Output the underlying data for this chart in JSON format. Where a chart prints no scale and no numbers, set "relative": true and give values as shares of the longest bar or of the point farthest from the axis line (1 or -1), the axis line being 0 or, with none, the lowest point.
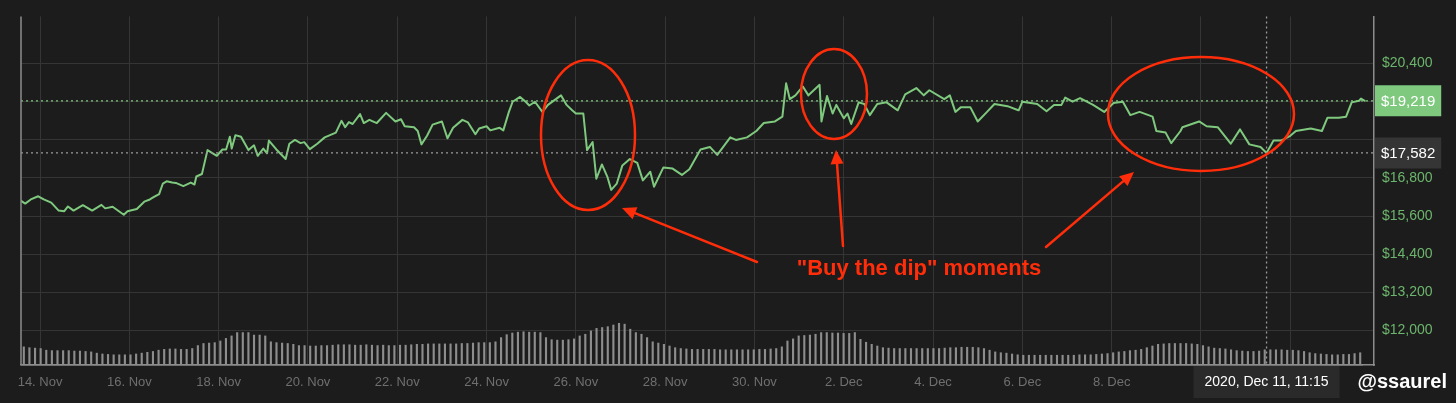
{
  "chart_data": [
    {
      "type": "line",
      "x": [
        "2020-11-13T14:00",
        "2020-11-13T16:00",
        "2020-11-13T19:00",
        "2020-11-13T23:00",
        "2020-11-14T02:00",
        "2020-11-14T06:00",
        "2020-11-14T10:00",
        "2020-11-14T13:00",
        "2020-11-14T15:00",
        "2020-11-14T18:00",
        "2020-11-14T23:00",
        "2020-11-15T04:00",
        "2020-11-15T09:00",
        "2020-11-15T11:00",
        "2020-11-15T15:00",
        "2020-11-15T21:00",
        "2020-11-15T23:00",
        "2020-11-16T04:00",
        "2020-11-16T08:00",
        "2020-11-16T11:00",
        "2020-11-16T13:00",
        "2020-11-16T16:00",
        "2020-11-16T18:00",
        "2020-11-16T20:00",
        "2020-11-16T23:00",
        "2020-11-17T01:00",
        "2020-11-17T05:00",
        "2020-11-17T09:00",
        "2020-11-17T11:00",
        "2020-11-17T12:00",
        "2020-11-17T15:00",
        "2020-11-17T18:00",
        "2020-11-17T23:00",
        "2020-11-18T02:00",
        "2020-11-18T04:00",
        "2020-11-18T06:00",
        "2020-11-18T07:00",
        "2020-11-18T09:00",
        "2020-11-18T12:00",
        "2020-11-18T16:00",
        "2020-11-18T19:00",
        "2020-11-18T21:00",
        "2020-11-19T00:00",
        "2020-11-19T02:00",
        "2020-11-19T03:00",
        "2020-11-19T07:00",
        "2020-11-19T12:00",
        "2020-11-19T14:00",
        "2020-11-19T17:00",
        "2020-11-19T20:00",
        "2020-11-19T22:00",
        "2020-11-20T01:00",
        "2020-11-20T05:00",
        "2020-11-20T09:00",
        "2020-11-20T15:00",
        "2020-11-20T18:00",
        "2020-11-20T20:00",
        "2020-11-20T22:00",
        "2020-11-21T00:00",
        "2020-11-21T04:00",
        "2020-11-21T06:00",
        "2020-11-21T09:00",
        "2020-11-21T13:00",
        "2020-11-21T18:00",
        "2020-11-21T23:00",
        "2020-11-22T02:00",
        "2020-11-22T04:00",
        "2020-11-22T09:00",
        "2020-11-22T11:00",
        "2020-11-22T13:00",
        "2020-11-22T16:00",
        "2020-11-22T19:00",
        "2020-11-23T00:00",
        "2020-11-23T03:00",
        "2020-11-23T06:00",
        "2020-11-23T11:00",
        "2020-11-23T14:00",
        "2020-11-23T18:00",
        "2020-11-23T20:00",
        "2020-11-24T00:00",
        "2020-11-24T02:00",
        "2020-11-24T07:00",
        "2020-11-24T09:00",
        "2020-11-24T12:00",
        "2020-11-24T14:00",
        "2020-11-24T18:00",
        "2020-11-24T21:00",
        "2020-11-24T23:00",
        "2020-11-25T02:00",
        "2020-11-25T06:00",
        "2020-11-25T09:00",
        "2020-11-25T16:00",
        "2020-11-25T19:00",
        "2020-11-25T22:00",
        "2020-11-26T00:00",
        "2020-11-26T04:00",
        "2020-11-26T06:00",
        "2020-11-26T09:00",
        "2020-11-26T11:00",
        "2020-11-26T14:00",
        "2020-11-26T17:00",
        "2020-11-26T19:00",
        "2020-11-26T22:00",
        "2020-11-27T01:00",
        "2020-11-27T05:00",
        "2020-11-27T09:00",
        "2020-11-27T12:00",
        "2020-11-27T16:00",
        "2020-11-27T18:00",
        "2020-11-27T23:00",
        "2020-11-28T04:00",
        "2020-11-28T09:00",
        "2020-11-28T13:00",
        "2020-11-28T19:00",
        "2020-11-29T00:00",
        "2020-11-29T04:00",
        "2020-11-29T11:00",
        "2020-11-29T14:00",
        "2020-11-29T20:00",
        "2020-11-30T01:00",
        "2020-11-30T05:00",
        "2020-11-30T11:00",
        "2020-11-30T15:00",
        "2020-11-30T17:00",
        "2020-11-30T19:00",
        "2020-11-30T22:00",
        "2020-12-01T02:00",
        "2020-12-01T05:00",
        "2020-12-01T11:00",
        "2020-12-01T12:00",
        "2020-12-01T15:00",
        "2020-12-01T18:00",
        "2020-12-01T20:00",
        "2020-12-02T00:00",
        "2020-12-02T02:00",
        "2020-12-02T04:00",
        "2020-12-02T08:00",
        "2020-12-02T11:00",
        "2020-12-02T14:00",
        "2020-12-02T18:00",
        "2020-12-02T23:00",
        "2020-12-03T05:00",
        "2020-12-03T09:00",
        "2020-12-03T15:00",
        "2020-12-03T19:00",
        "2020-12-03T22:00",
        "2020-12-04T06:00",
        "2020-12-04T09:00",
        "2020-12-04T12:00",
        "2020-12-04T15:00",
        "2020-12-04T20:00",
        "2020-12-05T00:00",
        "2020-12-05T05:00",
        "2020-12-05T09:00",
        "2020-12-05T16:00",
        "2020-12-05T22:00",
        "2020-12-06T00:00",
        "2020-12-06T08:00",
        "2020-12-06T13:00",
        "2020-12-06T17:00",
        "2020-12-06T21:00",
        "2020-12-06T23:00",
        "2020-12-07T03:00",
        "2020-12-07T07:00",
        "2020-12-07T14:00",
        "2020-12-07T20:00",
        "2020-12-08T01:00",
        "2020-12-08T06:00",
        "2020-12-08T10:00",
        "2020-12-08T15:00",
        "2020-12-08T22:00",
        "2020-12-09T00:00",
        "2020-12-09T05:00",
        "2020-12-09T08:00",
        "2020-12-09T13:00",
        "2020-12-09T14:00",
        "2020-12-09T23:00",
        "2020-12-10T03:00",
        "2020-12-10T09:00",
        "2020-12-10T16:00",
        "2020-12-10T21:00",
        "2020-12-11T02:00",
        "2020-12-11T08:00",
        "2020-12-11T11:15",
        "2020-12-11T15:00",
        "2020-12-11T19:00",
        "2020-12-12T00:00",
        "2020-12-12T03:00",
        "2020-12-12T11:00",
        "2020-12-12T17:00",
        "2020-12-12T20:00",
        "2020-12-13T02:00",
        "2020-12-13T06:00",
        "2020-12-13T09:00",
        "2020-12-13T13:00",
        "2020-12-13T14:00",
        "2020-12-13T16:00"
      ],
      "series": [
        {
          "color": "#7fc97f",
          "values": [
            16070,
            15990,
            16120,
            16220,
            16120,
            16020,
            15770,
            15750,
            15900,
            15770,
            15940,
            15770,
            15950,
            15840,
            15890,
            15640,
            15750,
            15820,
            16050,
            16120,
            16190,
            16290,
            16620,
            16690,
            16650,
            16640,
            16540,
            16650,
            16590,
            16840,
            16920,
            17670,
            17490,
            17690,
            17690,
            18090,
            17720,
            18140,
            18090,
            17670,
            17820,
            17490,
            17720,
            17570,
            17970,
            17690,
            17390,
            17870,
            17990,
            17890,
            17920,
            17700,
            17870,
            18070,
            18220,
            18590,
            18390,
            18550,
            18490,
            18800,
            18520,
            18620,
            18520,
            18840,
            18570,
            18640,
            18420,
            18390,
            18270,
            17850,
            18120,
            18470,
            18570,
            18040,
            18370,
            18620,
            18540,
            18170,
            18350,
            18420,
            18290,
            18370,
            18290,
            18870,
            19190,
            19340,
            19190,
            19070,
            19190,
            18870,
            19090,
            19390,
            19090,
            18920,
            18820,
            18820,
            17670,
            17920,
            16770,
            17220,
            16820,
            16420,
            16620,
            17190,
            17390,
            17270,
            16720,
            16990,
            16520,
            17120,
            17090,
            16890,
            17070,
            17690,
            17770,
            17520,
            18070,
            17990,
            18070,
            18270,
            18520,
            18570,
            18720,
            19770,
            19270,
            19390,
            19670,
            19390,
            19720,
            18570,
            19370,
            18820,
            19090,
            18670,
            18820,
            18490,
            19170,
            19120,
            18770,
            19120,
            19170,
            18920,
            19420,
            19620,
            19390,
            19550,
            19270,
            19390,
            18870,
            19020,
            19020,
            18570,
            18870,
            19120,
            19050,
            18920,
            19190,
            19120,
            18890,
            19090,
            19090,
            19320,
            19190,
            19300,
            19090,
            18870,
            19150,
            19190,
            18770,
            18870,
            18720,
            18270,
            18220,
            17890,
            18270,
            18390,
            18570,
            18420,
            18390,
            17870,
            18320,
            17850,
            17770,
            17580,
            17970,
            17970,
            18120,
            18270,
            18350,
            18270,
            18690,
            18690,
            18720,
            19170,
            19220,
            19290,
            19220
          ]
        }
      ],
      "xlim": [
        "2020-11-13T13:45",
        "2020-12-13T21:00"
      ],
      "xticks": [
        {
          "value": "2020-11-14",
          "label": "14. Nov"
        },
        {
          "value": "2020-11-16",
          "label": "16. Nov"
        },
        {
          "value": "2020-11-18",
          "label": "18. Nov"
        },
        {
          "value": "2020-11-20",
          "label": "20. Nov"
        },
        {
          "value": "2020-11-22",
          "label": "22. Nov"
        },
        {
          "value": "2020-11-24",
          "label": "24. Nov"
        },
        {
          "value": "2020-11-26",
          "label": "26. Nov"
        },
        {
          "value": "2020-11-28",
          "label": "28. Nov"
        },
        {
          "value": "2020-11-30",
          "label": "30. Nov"
        },
        {
          "value": "2020-12-02",
          "label": "2. Dec"
        },
        {
          "value": "2020-12-04",
          "label": "4. Dec"
        },
        {
          "value": "2020-12-06",
          "label": "6. Dec"
        },
        {
          "value": "2020-12-08",
          "label": "8. Dec"
        },
        {
          "value": "2020-12-10",
          "label": null
        },
        {
          "value": "2020-12-12",
          "label": null
        }
      ],
      "ylim": [
        10920,
        21870
      ],
      "yticks": [
        {
          "value": 12000,
          "label": "$12,000"
        },
        {
          "value": 13200,
          "label": "$13,200"
        },
        {
          "value": 14400,
          "label": "$14,400"
        },
        {
          "value": 15600,
          "label": "$15,600"
        },
        {
          "value": 16800,
          "label": "$16,800"
        },
        {
          "value": 18000,
          "label": null
        },
        {
          "value": 19200,
          "label": null
        },
        {
          "value": 20400,
          "label": "$20,400"
        }
      ],
      "grid": true,
      "ref_lines": [
        {
          "axis": "y",
          "value": 19219,
          "label": "$19,219",
          "color": "#7fc97f",
          "line_style": "dotted"
        },
        {
          "axis": "y",
          "value": 17582,
          "label": "$17,582",
          "color": "#9a9a9a",
          "line_style": "dotted"
        },
        {
          "axis": "x",
          "value": "2020-12-11T11:15",
          "label": "2020, Dec 11, 11:15",
          "color": "#9a9a9a",
          "line_style": "dotted"
        }
      ],
      "annotations": [
        "\"Buy the dip\" moments",
        "@ssaurel"
      ]
    },
    {
      "type": "bar",
      "relative": true,
      "color": "#8d8d8d",
      "categories": [
        null,
        null,
        null,
        null,
        null,
        null,
        null,
        null,
        null,
        null,
        null,
        null,
        null,
        null,
        null,
        null,
        null,
        null,
        null,
        null,
        null,
        null,
        null,
        null,
        null,
        null,
        null,
        null,
        null,
        null,
        null,
        null,
        null,
        null,
        null,
        null,
        null,
        null,
        null,
        null,
        null,
        null,
        null,
        null,
        null,
        null,
        null,
        null,
        null,
        null,
        null,
        null,
        null,
        null,
        null,
        null,
        null,
        null,
        null,
        null,
        null,
        null,
        null,
        null,
        null,
        null,
        null,
        null,
        null,
        null,
        null,
        null,
        null,
        null,
        null,
        null,
        null,
        null,
        null,
        null,
        null,
        null,
        null,
        null,
        null,
        null,
        null,
        null,
        null,
        null,
        null,
        null,
        null,
        null,
        null,
        null,
        null,
        null,
        null,
        null,
        null,
        null,
        null,
        null,
        null,
        null,
        null,
        null,
        null,
        null,
        null,
        null,
        null,
        null,
        null,
        null,
        null,
        null,
        null,
        null,
        null,
        null,
        null,
        null,
        null,
        null,
        null,
        null,
        null,
        null,
        null,
        null,
        null,
        null,
        null,
        null,
        null,
        null,
        null,
        null,
        null,
        null,
        null,
        null,
        null,
        null,
        null,
        null,
        null,
        null,
        null,
        null,
        null,
        null,
        null,
        null,
        null,
        null,
        null,
        null,
        null,
        null,
        null,
        null,
        null,
        null,
        null,
        null,
        null,
        null,
        null,
        null,
        null,
        null,
        null,
        null,
        null,
        null,
        null,
        null,
        null,
        null,
        null,
        null,
        null,
        null,
        null,
        null,
        null,
        null,
        null,
        null,
        null,
        null,
        null,
        null,
        null,
        null,
        null,
        null,
        null,
        null,
        null,
        null,
        null,
        null,
        null,
        null,
        null,
        null,
        null,
        null,
        null,
        null,
        null,
        null,
        null,
        null,
        null,
        null,
        null,
        null,
        null,
        null,
        null,
        null,
        null,
        null,
        null,
        null,
        null,
        null,
        null,
        null,
        null,
        null,
        null,
        null,
        null
      ],
      "values": [
        0.44,
        0.42,
        0.41,
        0.4,
        0.36,
        0.35,
        0.35,
        0.35,
        0.35,
        0.34,
        0.34,
        0.33,
        0.32,
        0.29,
        0.27,
        0.26,
        0.25,
        0.25,
        0.25,
        0.25,
        0.27,
        0.29,
        0.31,
        0.33,
        0.36,
        0.38,
        0.39,
        0.39,
        0.38,
        0.38,
        0.4,
        0.47,
        0.52,
        0.53,
        0.54,
        0.58,
        0.64,
        0.7,
        0.78,
        0.78,
        0.78,
        0.72,
        0.72,
        0.7,
        0.56,
        0.54,
        0.53,
        0.52,
        0.5,
        0.47,
        0.47,
        0.46,
        0.46,
        0.47,
        0.47,
        0.48,
        0.49,
        0.49,
        0.49,
        0.48,
        0.48,
        0.49,
        0.48,
        0.47,
        0.48,
        0.47,
        0.47,
        0.48,
        0.48,
        0.49,
        0.5,
        0.5,
        0.51,
        0.51,
        0.51,
        0.51,
        0.51,
        0.51,
        0.52,
        0.52,
        0.53,
        0.54,
        0.54,
        0.54,
        0.56,
        0.66,
        0.73,
        0.77,
        0.79,
        0.8,
        0.79,
        0.79,
        0.78,
        0.66,
        0.61,
        0.6,
        0.6,
        0.61,
        0.63,
        0.7,
        0.74,
        0.82,
        0.88,
        0.9,
        0.92,
        0.96,
        1,
        0.98,
        0.86,
        0.78,
        0.74,
        0.66,
        0.56,
        0.53,
        0.5,
        0.46,
        0.42,
        0.4,
        0.39,
        0.38,
        0.38,
        0.38,
        0.38,
        0.38,
        0.37,
        0.37,
        0.37,
        0.37,
        0.37,
        0.37,
        0.37,
        0.38,
        0.38,
        0.39,
        0.4,
        0.44,
        0.58,
        0.63,
        0.7,
        0.71,
        0.72,
        0.74,
        0.78,
        0.78,
        0.77,
        0.77,
        0.76,
        0.76,
        0.78,
        0.62,
        0.55,
        0.5,
        0.46,
        0.42,
        0.41,
        0.4,
        0.4,
        0.4,
        0.4,
        0.4,
        0.4,
        0.4,
        0.4,
        0.4,
        0.41,
        0.42,
        0.42,
        0.43,
        0.43,
        0.43,
        0.42,
        0.4,
        0.36,
        0.32,
        0.3,
        0.29,
        0.27,
        0.25,
        0.24,
        0.24,
        0.24,
        0.24,
        0.24,
        0.24,
        0.24,
        0.24,
        0.24,
        0.24,
        0.25,
        0.25,
        0.25,
        0.26,
        0.27,
        0.28,
        0.3,
        0.32,
        0.33,
        0.35,
        0.36,
        0.38,
        0.42,
        0.46,
        0.5,
        0.51,
        0.52,
        0.52,
        0.52,
        0.52,
        0.51,
        0.5,
        0.47,
        0.44,
        0.41,
        0.4,
        0.39,
        0.37,
        0.35,
        0.34,
        0.33,
        0.33,
        0.34,
        0.37,
        0.37,
        0.37,
        0.37,
        0.36,
        0.36,
        0.35,
        0.33,
        0.3,
        0.28,
        0.27,
        0.26,
        0.25,
        0.25,
        0.26,
        0.26,
        0.28,
        0.3
      ]
    }
  ]
}
